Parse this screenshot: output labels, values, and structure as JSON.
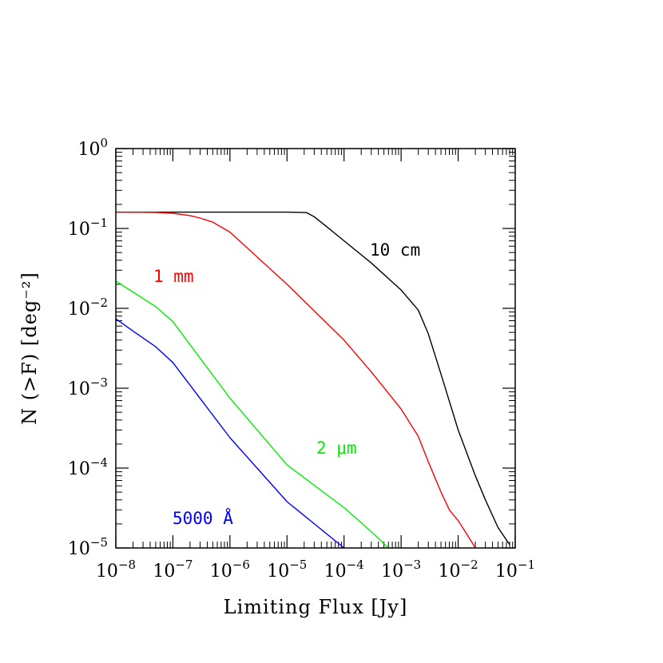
{
  "chart_data": {
    "type": "line",
    "title": "",
    "xlabel": "Limiting Flux [Jy]",
    "ylabel": "N (>F) [deg⁻²]",
    "xscale": "log",
    "yscale": "log",
    "xlim": [
      1e-08,
      0.1
    ],
    "ylim": [
      1e-05,
      1
    ],
    "x_ticks": [
      {
        "value": 1e-08,
        "base": "10",
        "exp": "−8"
      },
      {
        "value": 1e-07,
        "base": "10",
        "exp": "−7"
      },
      {
        "value": 1e-06,
        "base": "10",
        "exp": "−6"
      },
      {
        "value": 1e-05,
        "base": "10",
        "exp": "−5"
      },
      {
        "value": 0.0001,
        "base": "10",
        "exp": "−4"
      },
      {
        "value": 0.001,
        "base": "10",
        "exp": "−3"
      },
      {
        "value": 0.01,
        "base": "10",
        "exp": "−2"
      },
      {
        "value": 0.1,
        "base": "10",
        "exp": "−1"
      }
    ],
    "y_ticks": [
      {
        "value": 1,
        "base": "10",
        "exp": "0"
      },
      {
        "value": 0.1,
        "base": "10",
        "exp": "−1"
      },
      {
        "value": 0.01,
        "base": "10",
        "exp": "−2"
      },
      {
        "value": 0.001,
        "base": "10",
        "exp": "−3"
      },
      {
        "value": 0.0001,
        "base": "10",
        "exp": "−4"
      },
      {
        "value": 1e-05,
        "base": "10",
        "exp": "−5"
      }
    ],
    "grid": false,
    "legend": "inline labels",
    "series": [
      {
        "name": "10 cm",
        "color": "#000000",
        "x": [
          1e-08,
          1e-07,
          1e-06,
          1e-05,
          2.2e-05,
          3e-05,
          5e-05,
          0.0001,
          0.0003,
          0.001,
          0.002,
          0.003,
          0.005,
          0.01,
          0.02,
          0.03,
          0.05,
          0.08
        ],
        "y": [
          0.16,
          0.16,
          0.16,
          0.16,
          0.158,
          0.14,
          0.105,
          0.07,
          0.037,
          0.017,
          0.0095,
          0.0048,
          0.0015,
          0.0003,
          8e-05,
          4e-05,
          1.8e-05,
          1.1e-05
        ]
      },
      {
        "name": "1 mm",
        "color": "#ff0000",
        "x": [
          1e-08,
          5e-08,
          1e-07,
          2e-07,
          3e-07,
          5e-07,
          1e-06,
          1e-05,
          0.0001,
          0.0003,
          0.001,
          0.002,
          0.003,
          0.005,
          0.007,
          0.01,
          0.015,
          0.02
        ],
        "y": [
          0.16,
          0.159,
          0.155,
          0.145,
          0.135,
          0.12,
          0.09,
          0.02,
          0.004,
          0.0016,
          0.00055,
          0.00025,
          0.00012,
          5e-05,
          3e-05,
          2.2e-05,
          1.4e-05,
          1e-05
        ]
      },
      {
        "name": "2 μm",
        "color": "#00ee00",
        "x": [
          1e-08,
          2e-08,
          5e-08,
          1e-07,
          1e-06,
          1e-05,
          0.0001,
          0.0003,
          0.0006
        ],
        "y": [
          0.022,
          0.016,
          0.0105,
          0.0068,
          0.00075,
          0.00011,
          3.2e-05,
          1.6e-05,
          1e-05
        ],
        "label_prefix": "2 ",
        "label_symbol": "μ",
        "label_suffix": "m"
      },
      {
        "name": "5000 Å",
        "color": "#0000ff",
        "x": [
          1e-08,
          2e-08,
          5e-08,
          1e-07,
          1e-06,
          1e-05,
          0.0001,
          0.0001
        ],
        "y": [
          0.0074,
          0.0052,
          0.0033,
          0.0021,
          0.00024,
          3.8e-05,
          1e-05,
          1e-05
        ]
      }
    ],
    "series_labels": [
      {
        "text": "10 cm",
        "color": "#000000"
      },
      {
        "text": "1 mm",
        "color": "#ff0000"
      },
      {
        "text": "2 μm",
        "color": "#00ee00"
      },
      {
        "text": "5000 Å",
        "color": "#0000ff"
      }
    ]
  }
}
